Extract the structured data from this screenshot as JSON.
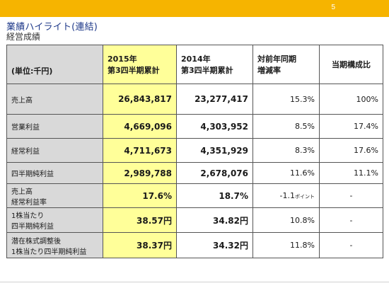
{
  "slide": {
    "page_number": "5",
    "title": "業績ハイライト(連結)",
    "subtitle": "経営成績",
    "colors": {
      "accent": "#f6b400",
      "highlight": "#ffff99",
      "label_bg": "#d9d9d9",
      "title": "#1f3a8a"
    }
  },
  "table": {
    "headers": {
      "unit": "(単位:千円)",
      "y2015_line1": "2015年",
      "y2015_line2": "第3四半期累計",
      "y2014_line1": "2014年",
      "y2014_line2": "第3四半期累計",
      "yoy_line1": "対前年同期",
      "yoy_line2": "増減率",
      "share": "当期構成比"
    },
    "rows": [
      {
        "label": "売上高",
        "cur": "26,843,817",
        "prev": "23,277,417",
        "yoy": "15.3%",
        "share": "100%"
      },
      {
        "label": "営業利益",
        "cur": "4,669,096",
        "prev": "4,303,952",
        "yoy": "8.5%",
        "share": "17.4%"
      },
      {
        "label": "経常利益",
        "cur": "4,711,673",
        "prev": "4,351,929",
        "yoy": "8.3%",
        "share": "17.6%"
      },
      {
        "label": "四半期純利益",
        "cur": "2,989,788",
        "prev": "2,678,076",
        "yoy": "11.6%",
        "share": "11.1%"
      },
      {
        "label_line1": "売上高",
        "label_line2": "経常利益率",
        "cur": "17.6%",
        "prev": "18.7%",
        "yoy_main": "-1.1",
        "yoy_unit": "ポイント",
        "share": "-"
      },
      {
        "label_line1": "1株当たり",
        "label_line2": "四半期純利益",
        "cur_value": "38.57",
        "cur_unit": "円",
        "prev_value": "34.82",
        "prev_unit": "円",
        "yoy": "10.8%",
        "share": "-"
      },
      {
        "label_line1": "潜在株式調整後",
        "label_line2": "1株当たり四半期純利益",
        "cur_value": "38.37",
        "cur_unit": "円",
        "prev_value": "34.32",
        "prev_unit": "円",
        "yoy": "11.8%",
        "share": "-"
      }
    ]
  }
}
